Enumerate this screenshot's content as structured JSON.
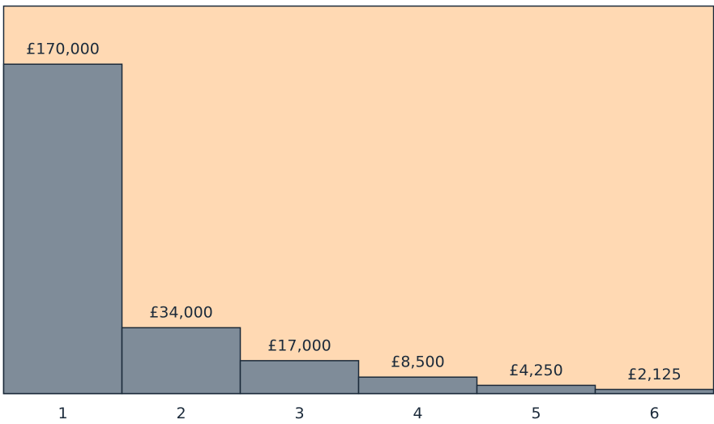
{
  "chart_data": {
    "type": "bar",
    "categories": [
      "1",
      "2",
      "3",
      "4",
      "5",
      "6"
    ],
    "values": [
      170000,
      34000,
      17000,
      8500,
      4250,
      2125
    ],
    "value_labels": [
      "£170,000",
      "£34,000",
      "£17,000",
      "£8,500",
      "£4,250",
      "£2,125"
    ],
    "color": "#7f8c99",
    "ylim": [
      0,
      200000
    ]
  }
}
